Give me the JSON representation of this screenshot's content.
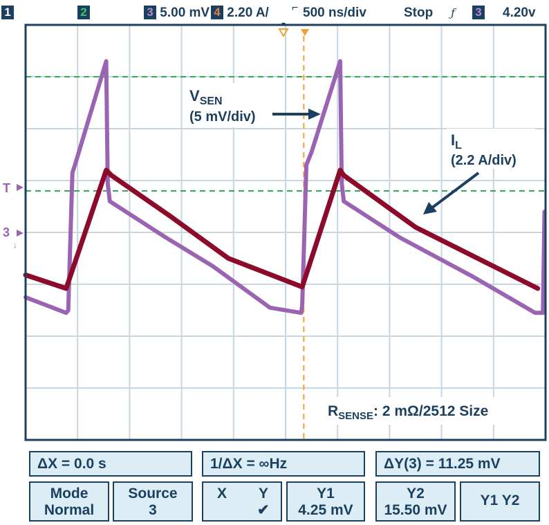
{
  "status_bar": {
    "ch1_label": "1",
    "ch2_label": "2",
    "ch3_label": "3",
    "ch3_scale": "5.00 mV",
    "ch4_label": "4",
    "ch4_scale": "2.20 A/",
    "timebase": "500 ns/div",
    "run_state": "Stop",
    "trigger_symbol": "ƒ",
    "trigger_channel": "3",
    "trigger_level": "4.20v"
  },
  "colors": {
    "vsen": "#9b64b3",
    "il": "#8c0a2a",
    "cursor_h": "#2eaa52",
    "cursor_v": "#f0a035",
    "grid": "#c6d7e3",
    "frame": "#1b3f5e",
    "panel_bg": "#dcedf5",
    "label": "#1b3f5e"
  },
  "markers": {
    "trigger": "T",
    "ch3": "3"
  },
  "chart_data": {
    "type": "line",
    "grid": true,
    "x_divisions": 10,
    "y_divisions": 8,
    "xlim_div": [
      0,
      10
    ],
    "ylim_div": [
      0,
      8
    ],
    "series": [
      {
        "name": "VSEN",
        "key": "vsen",
        "x_div": [
          0,
          0.78,
          0.82,
          0.9,
          0.95,
          1.55,
          1.58,
          1.62,
          2.7,
          3.6,
          4.7,
          5.3,
          5.32,
          5.4,
          5.5,
          6.05,
          6.08,
          6.12,
          7.2,
          8.6,
          9.8,
          9.95,
          9.98
        ],
        "y_div": [
          2.75,
          2.45,
          2.5,
          5.15,
          5.3,
          7.3,
          4.95,
          4.6,
          3.9,
          3.35,
          2.55,
          2.45,
          2.6,
          5.3,
          5.55,
          7.3,
          4.95,
          4.6,
          3.9,
          3.15,
          2.45,
          2.45,
          4.4
        ]
      },
      {
        "name": "IL",
        "key": "il",
        "x_div": [
          0,
          0.78,
          1.55,
          1.65,
          2.8,
          3.9,
          5.32,
          6.05,
          6.12,
          7.5,
          9.85
        ],
        "y_div": [
          3.18,
          2.92,
          5.2,
          5.1,
          4.3,
          3.5,
          2.95,
          5.2,
          5.1,
          4.1,
          2.92
        ]
      }
    ],
    "cursors": {
      "horizontal_y_div": [
        7.0,
        4.8
      ],
      "vertical_x_div": [
        5.35
      ]
    },
    "annotations": {
      "vsen_label": "V",
      "vsen_sub": "SEN",
      "vsen_scale": "(5 mV/div)",
      "il_label": "I",
      "il_sub": "L",
      "il_scale": "(2.2 A/div)",
      "rsense_label": "R",
      "rsense_sub": "SENSE",
      "rsense_value": ": 2 mΩ/2512 Size"
    }
  },
  "measurements": {
    "delta_x": "ΔX = 0.0 s",
    "inv_delta_x": "1/ΔX = ∞Hz",
    "delta_y": "ΔY(3) = 11.25 mV"
  },
  "softkeys": {
    "mode_title": "Mode",
    "mode_value": "Normal",
    "source_title": "Source",
    "source_value": "3",
    "xy_x": "X",
    "xy_y": "Y",
    "xy_check": "✔",
    "y1_title": "Y1",
    "y1_value": "4.25 mV",
    "y2_title": "Y2",
    "y2_value": "15.50 mV",
    "y1y2_label": "Y1 Y2"
  }
}
